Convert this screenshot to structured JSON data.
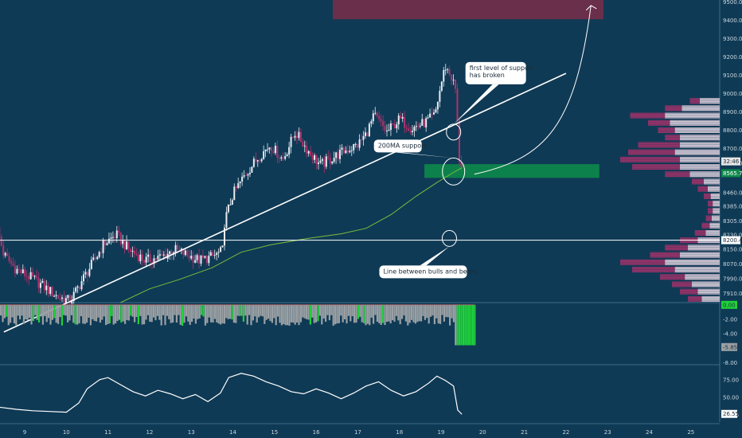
{
  "colors": {
    "background": "#0f3a55",
    "bull": "#e8edf2",
    "bear": "#b2316d",
    "ma": "#7dbb3d",
    "supportZone": "#0d8a4a",
    "resistanceZone": "#7a2e4a",
    "trendline": "#ffffff",
    "volNeg": "#9aa0a4",
    "volPos": "#1fd13a"
  },
  "chart_data": {
    "type": "candlestick",
    "price_axis": {
      "ticks": [
        "9500.00",
        "9400.00",
        "9300.00",
        "9200.00",
        "9100.00",
        "9000.00",
        "8900.00",
        "8800.00",
        "8700.00",
        "8620.00",
        "8565.75",
        "8460.00",
        "8385.00",
        "8305.00",
        "8230.00",
        "8200.48",
        "8150.00",
        "8070.00",
        "7990.00",
        "7910.00"
      ],
      "ylim": [
        7860,
        9510
      ]
    },
    "time_axis": {
      "ticks": [
        "9",
        "10",
        "11",
        "12",
        "13",
        "14",
        "15",
        "16",
        "17",
        "18",
        "19",
        "20",
        "21",
        "22",
        "23",
        "24",
        "25"
      ]
    },
    "price_tags": [
      {
        "name": "countdown",
        "text": "32:46",
        "value": 8630
      },
      {
        "name": "last-price",
        "text": "8565.75",
        "value": 8565.75
      },
      {
        "name": "horizontal-line",
        "text": "8200.48",
        "value": 8200.48
      }
    ],
    "horizontal_line": 8200.48,
    "support_zone": {
      "from_day": 18.6,
      "to_day": 22.8,
      "low": 8540,
      "high": 8615
    },
    "resistance_zone": {
      "from_day": 16.4,
      "to_day": 22.9,
      "low": 9405,
      "high": 9520
    },
    "trendline": {
      "start": [
        8.5,
        7700
      ],
      "end": [
        22.0,
        9110
      ]
    },
    "projection_arrow": {
      "start": [
        19.8,
        8560
      ],
      "end": [
        22.6,
        9480
      ]
    },
    "annotations": [
      {
        "name": "first-level-break",
        "text": [
          "first level of support",
          "has broken"
        ],
        "circle": [
          19.3,
          8790
        ]
      },
      {
        "name": "ma-support",
        "text": [
          "200MA support"
        ],
        "circle": [
          19.3,
          8575
        ]
      },
      {
        "name": "bull-bear-line",
        "text": [
          "Line between bulls and bears"
        ],
        "circle": [
          19.2,
          8210
        ]
      }
    ],
    "ma_path": [
      [
        11.3,
        7860
      ],
      [
        12.0,
        7935
      ],
      [
        12.7,
        7985
      ],
      [
        13.5,
        8050
      ],
      [
        14.2,
        8135
      ],
      [
        14.9,
        8175
      ],
      [
        15.8,
        8210
      ],
      [
        16.6,
        8235
      ],
      [
        17.2,
        8265
      ],
      [
        17.8,
        8340
      ],
      [
        18.4,
        8440
      ],
      [
        18.9,
        8515
      ],
      [
        19.3,
        8570
      ],
      [
        19.5,
        8595
      ]
    ],
    "price_path": [
      [
        8.3,
        8300
      ],
      [
        8.5,
        8120
      ],
      [
        8.8,
        8040
      ],
      [
        9.2,
        7990
      ],
      [
        9.5,
        7940
      ],
      [
        9.8,
        7890
      ],
      [
        10.1,
        7870
      ],
      [
        10.4,
        7990
      ],
      [
        10.7,
        8100
      ],
      [
        10.9,
        8180
      ],
      [
        11.2,
        8230
      ],
      [
        11.5,
        8150
      ],
      [
        11.9,
        8090
      ],
      [
        12.3,
        8110
      ],
      [
        12.6,
        8150
      ],
      [
        12.9,
        8120
      ],
      [
        13.2,
        8090
      ],
      [
        13.5,
        8110
      ],
      [
        13.75,
        8140
      ],
      [
        13.8,
        8300
      ],
      [
        14.0,
        8450
      ],
      [
        14.3,
        8560
      ],
      [
        14.6,
        8650
      ],
      [
        14.9,
        8720
      ],
      [
        15.2,
        8640
      ],
      [
        15.5,
        8790
      ],
      [
        15.8,
        8690
      ],
      [
        16.1,
        8610
      ],
      [
        16.4,
        8650
      ],
      [
        16.7,
        8690
      ],
      [
        17.0,
        8720
      ],
      [
        17.2,
        8780
      ],
      [
        17.4,
        8880
      ],
      [
        17.7,
        8790
      ],
      [
        18.0,
        8860
      ],
      [
        18.3,
        8810
      ],
      [
        18.6,
        8840
      ],
      [
        18.85,
        8880
      ],
      [
        19.0,
        9050
      ],
      [
        19.1,
        9150
      ],
      [
        19.25,
        9090
      ],
      [
        19.35,
        9020
      ],
      [
        19.4,
        8800
      ],
      [
        19.45,
        8600
      ],
      [
        19.5,
        8620
      ],
      [
        19.55,
        8580
      ]
    ],
    "volume_profile": {
      "bins": [
        {
          "price": 8960,
          "total": 0.3,
          "buy": 0.2
        },
        {
          "price": 8920,
          "total": 0.55,
          "buy": 0.38
        },
        {
          "price": 8880,
          "total": 0.9,
          "buy": 0.55
        },
        {
          "price": 8840,
          "total": 0.72,
          "buy": 0.5
        },
        {
          "price": 8800,
          "total": 0.62,
          "buy": 0.45
        },
        {
          "price": 8760,
          "total": 0.55,
          "buy": 0.4
        },
        {
          "price": 8720,
          "total": 0.82,
          "buy": 0.4
        },
        {
          "price": 8680,
          "total": 0.92,
          "buy": 0.45
        },
        {
          "price": 8640,
          "total": 1.0,
          "buy": 0.4
        },
        {
          "price": 8600,
          "total": 0.88,
          "buy": 0.4
        },
        {
          "price": 8560,
          "total": 0.55,
          "buy": 0.3
        },
        {
          "price": 8520,
          "total": 0.28,
          "buy": 0.16
        },
        {
          "price": 8480,
          "total": 0.22,
          "buy": 0.12
        },
        {
          "price": 8440,
          "total": 0.16,
          "buy": 0.09
        },
        {
          "price": 8400,
          "total": 0.12,
          "buy": 0.07
        },
        {
          "price": 8360,
          "total": 0.12,
          "buy": 0.07
        },
        {
          "price": 8320,
          "total": 0.14,
          "buy": 0.08
        },
        {
          "price": 8280,
          "total": 0.18,
          "buy": 0.1
        },
        {
          "price": 8240,
          "total": 0.25,
          "buy": 0.14
        },
        {
          "price": 8200,
          "total": 0.4,
          "buy": 0.22
        },
        {
          "price": 8160,
          "total": 0.55,
          "buy": 0.32
        },
        {
          "price": 8120,
          "total": 0.7,
          "buy": 0.4
        },
        {
          "price": 8080,
          "total": 1.0,
          "buy": 0.55
        },
        {
          "price": 8040,
          "total": 0.88,
          "buy": 0.45
        },
        {
          "price": 8000,
          "total": 0.6,
          "buy": 0.35
        },
        {
          "price": 7960,
          "total": 0.48,
          "buy": 0.28
        },
        {
          "price": 7920,
          "total": 0.4,
          "buy": 0.22
        },
        {
          "price": 7880,
          "total": 0.32,
          "buy": 0.18
        }
      ]
    },
    "volume_pane": {
      "ticks": [
        "0.00",
        "-2.00",
        "-4.00",
        "-6.00",
        "-8.00"
      ],
      "ylim": [
        -8.3,
        0.2
      ],
      "tags": [
        {
          "text": "0.00",
          "value": 0.0
        },
        {
          "text": "-5.85",
          "value": -5.85
        }
      ]
    },
    "oscillator_pane": {
      "ticks": [
        "75.00",
        "50.00",
        "25.00"
      ],
      "ylim": [
        15,
        95
      ],
      "tag": {
        "text": "26.55",
        "value": 26.55
      },
      "path": [
        [
          8.0,
          40
        ],
        [
          8.4,
          36
        ],
        [
          8.8,
          33
        ],
        [
          9.2,
          31
        ],
        [
          9.6,
          30
        ],
        [
          10.0,
          29
        ],
        [
          10.3,
          42
        ],
        [
          10.5,
          62
        ],
        [
          10.8,
          75
        ],
        [
          11.0,
          78
        ],
        [
          11.3,
          68
        ],
        [
          11.6,
          58
        ],
        [
          11.9,
          52
        ],
        [
          12.2,
          60
        ],
        [
          12.5,
          55
        ],
        [
          12.8,
          48
        ],
        [
          13.1,
          54
        ],
        [
          13.4,
          44
        ],
        [
          13.7,
          56
        ],
        [
          13.9,
          78
        ],
        [
          14.2,
          84
        ],
        [
          14.5,
          80
        ],
        [
          14.8,
          72
        ],
        [
          15.1,
          66
        ],
        [
          15.4,
          58
        ],
        [
          15.7,
          55
        ],
        [
          16.0,
          62
        ],
        [
          16.3,
          56
        ],
        [
          16.6,
          48
        ],
        [
          16.9,
          56
        ],
        [
          17.2,
          66
        ],
        [
          17.5,
          72
        ],
        [
          17.8,
          60
        ],
        [
          18.1,
          52
        ],
        [
          18.4,
          58
        ],
        [
          18.7,
          70
        ],
        [
          18.9,
          80
        ],
        [
          19.1,
          74
        ],
        [
          19.3,
          66
        ],
        [
          19.4,
          32
        ],
        [
          19.5,
          26
        ]
      ]
    }
  }
}
